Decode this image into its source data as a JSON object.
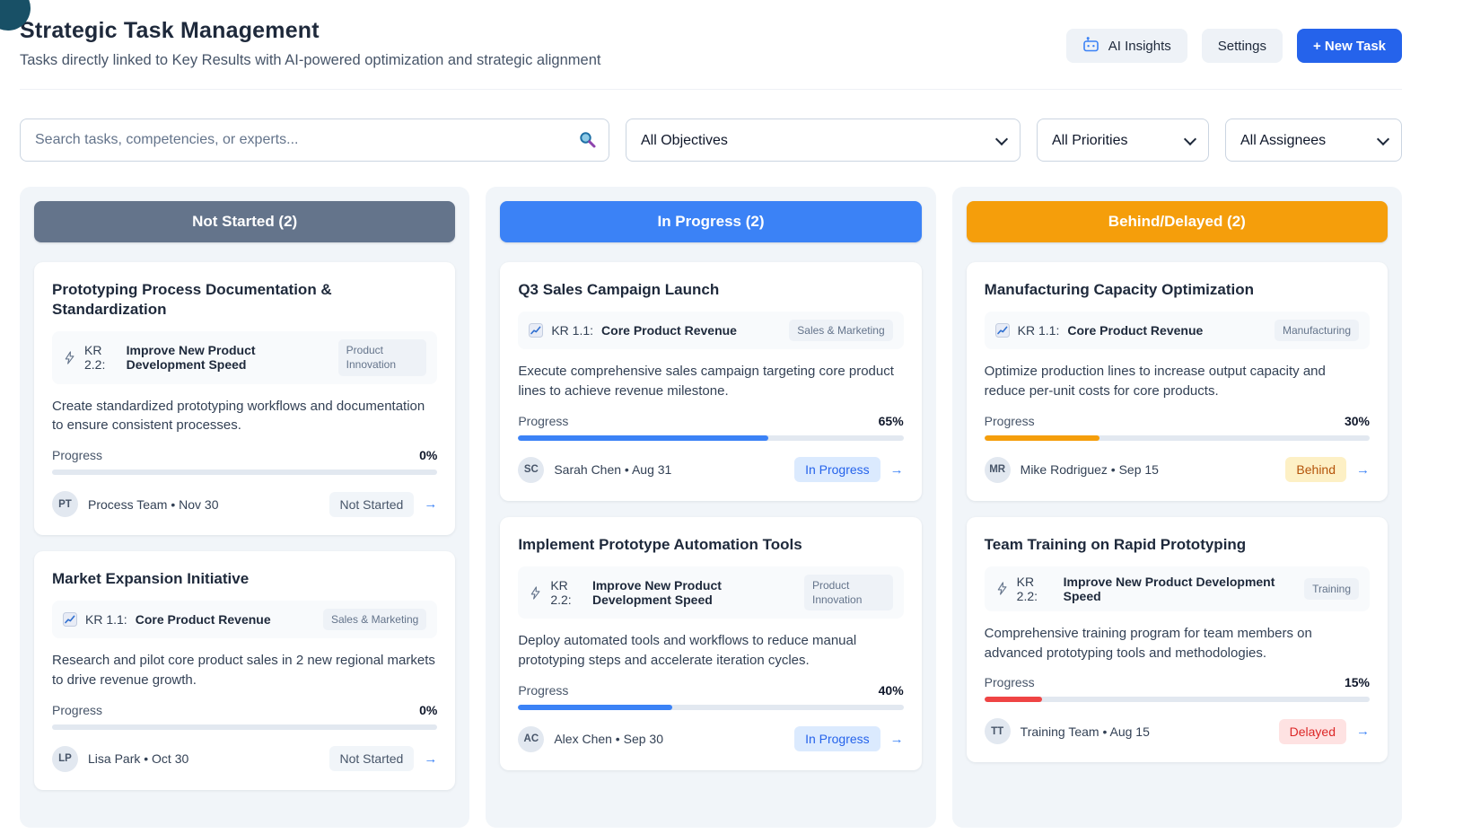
{
  "page": {
    "title": "Strategic Task Management",
    "subtitle": "Tasks directly linked to Key Results with AI-powered optimization and strategic alignment"
  },
  "toolbar": {
    "ai_insights_label": "AI Insights",
    "settings_label": "Settings",
    "new_task_label": "+ New Task"
  },
  "filters": {
    "search_placeholder": "Search tasks, competencies, or experts...",
    "objectives": "All Objectives",
    "priorities": "All Priorities",
    "assignees": "All Assignees"
  },
  "ui": {
    "progress_label": "Progress",
    "arrow": "→"
  },
  "colors": {
    "accent_blue": "#2563eb",
    "column_not_started": "#64748b",
    "column_in_progress": "#3b82f6",
    "column_behind": "#f59e0b",
    "progress_blue": "#3b82f6",
    "progress_orange": "#f59e0b",
    "progress_red": "#ef4444",
    "badge_behind_bg": "#fdf0c5",
    "badge_delayed_bg": "#fee2e2"
  },
  "columns": [
    {
      "header": "Not Started (2)",
      "color": "#64748b",
      "tasks": [
        {
          "title": "Prototyping Process Documentation & Standardization",
          "kr_code": "KR 2.2:",
          "kr_name": "Improve New Product Development Speed",
          "kr_icon": "lightning-icon",
          "tag": "Product Innovation",
          "description": "Create standardized prototyping workflows and documentation to ensure consistent processes.",
          "progress": 0,
          "progress_text": "0%",
          "progress_color": "#3b82f6",
          "avatar": "PT",
          "meta": "Process Team • Nov 30",
          "status": "Not Started"
        },
        {
          "title": "Market Expansion Initiative",
          "kr_code": "KR 1.1:",
          "kr_name": "Core Product Revenue",
          "kr_icon": "trend-chart-icon",
          "tag": "Sales & Marketing",
          "description": "Research and pilot core product sales in 2 new regional markets to drive revenue growth.",
          "progress": 0,
          "progress_text": "0%",
          "progress_color": "#3b82f6",
          "avatar": "LP",
          "meta": "Lisa Park • Oct 30",
          "status": "Not Started"
        }
      ]
    },
    {
      "header": "In Progress (2)",
      "color": "#3b82f6",
      "tasks": [
        {
          "title": "Q3 Sales Campaign Launch",
          "kr_code": "KR 1.1:",
          "kr_name": "Core Product Revenue",
          "kr_icon": "trend-chart-icon",
          "tag": "Sales & Marketing",
          "description": "Execute comprehensive sales campaign targeting core product lines to achieve revenue milestone.",
          "progress": 65,
          "progress_text": "65%",
          "progress_color": "#3b82f6",
          "avatar": "SC",
          "meta": "Sarah Chen • Aug 31",
          "status": "In Progress"
        },
        {
          "title": "Implement Prototype Automation Tools",
          "kr_code": "KR 2.2:",
          "kr_name": "Improve New Product Development Speed",
          "kr_icon": "lightning-icon",
          "tag": "Product Innovation",
          "description": "Deploy automated tools and workflows to reduce manual prototyping steps and accelerate iteration cycles.",
          "progress": 40,
          "progress_text": "40%",
          "progress_color": "#3b82f6",
          "avatar": "AC",
          "meta": "Alex Chen • Sep 30",
          "status": "In Progress"
        }
      ]
    },
    {
      "header": "Behind/Delayed (2)",
      "color": "#f59e0b",
      "tasks": [
        {
          "title": "Manufacturing Capacity Optimization",
          "kr_code": "KR 1.1:",
          "kr_name": "Core Product Revenue",
          "kr_icon": "trend-chart-icon",
          "tag": "Manufacturing",
          "description": "Optimize production lines to increase output capacity and reduce per-unit costs for core products.",
          "progress": 30,
          "progress_text": "30%",
          "progress_color": "#f59e0b",
          "avatar": "MR",
          "meta": "Mike Rodriguez • Sep 15",
          "status": "Behind"
        },
        {
          "title": "Team Training on Rapid Prototyping",
          "kr_code": "KR 2.2:",
          "kr_name": "Improve New Product Development Speed",
          "kr_icon": "lightning-icon",
          "tag": "Training",
          "description": "Comprehensive training program for team members on advanced prototyping tools and methodologies.",
          "progress": 15,
          "progress_text": "15%",
          "progress_color": "#ef4444",
          "avatar": "TT",
          "meta": "Training Team • Aug 15",
          "status": "Delayed"
        }
      ]
    }
  ]
}
